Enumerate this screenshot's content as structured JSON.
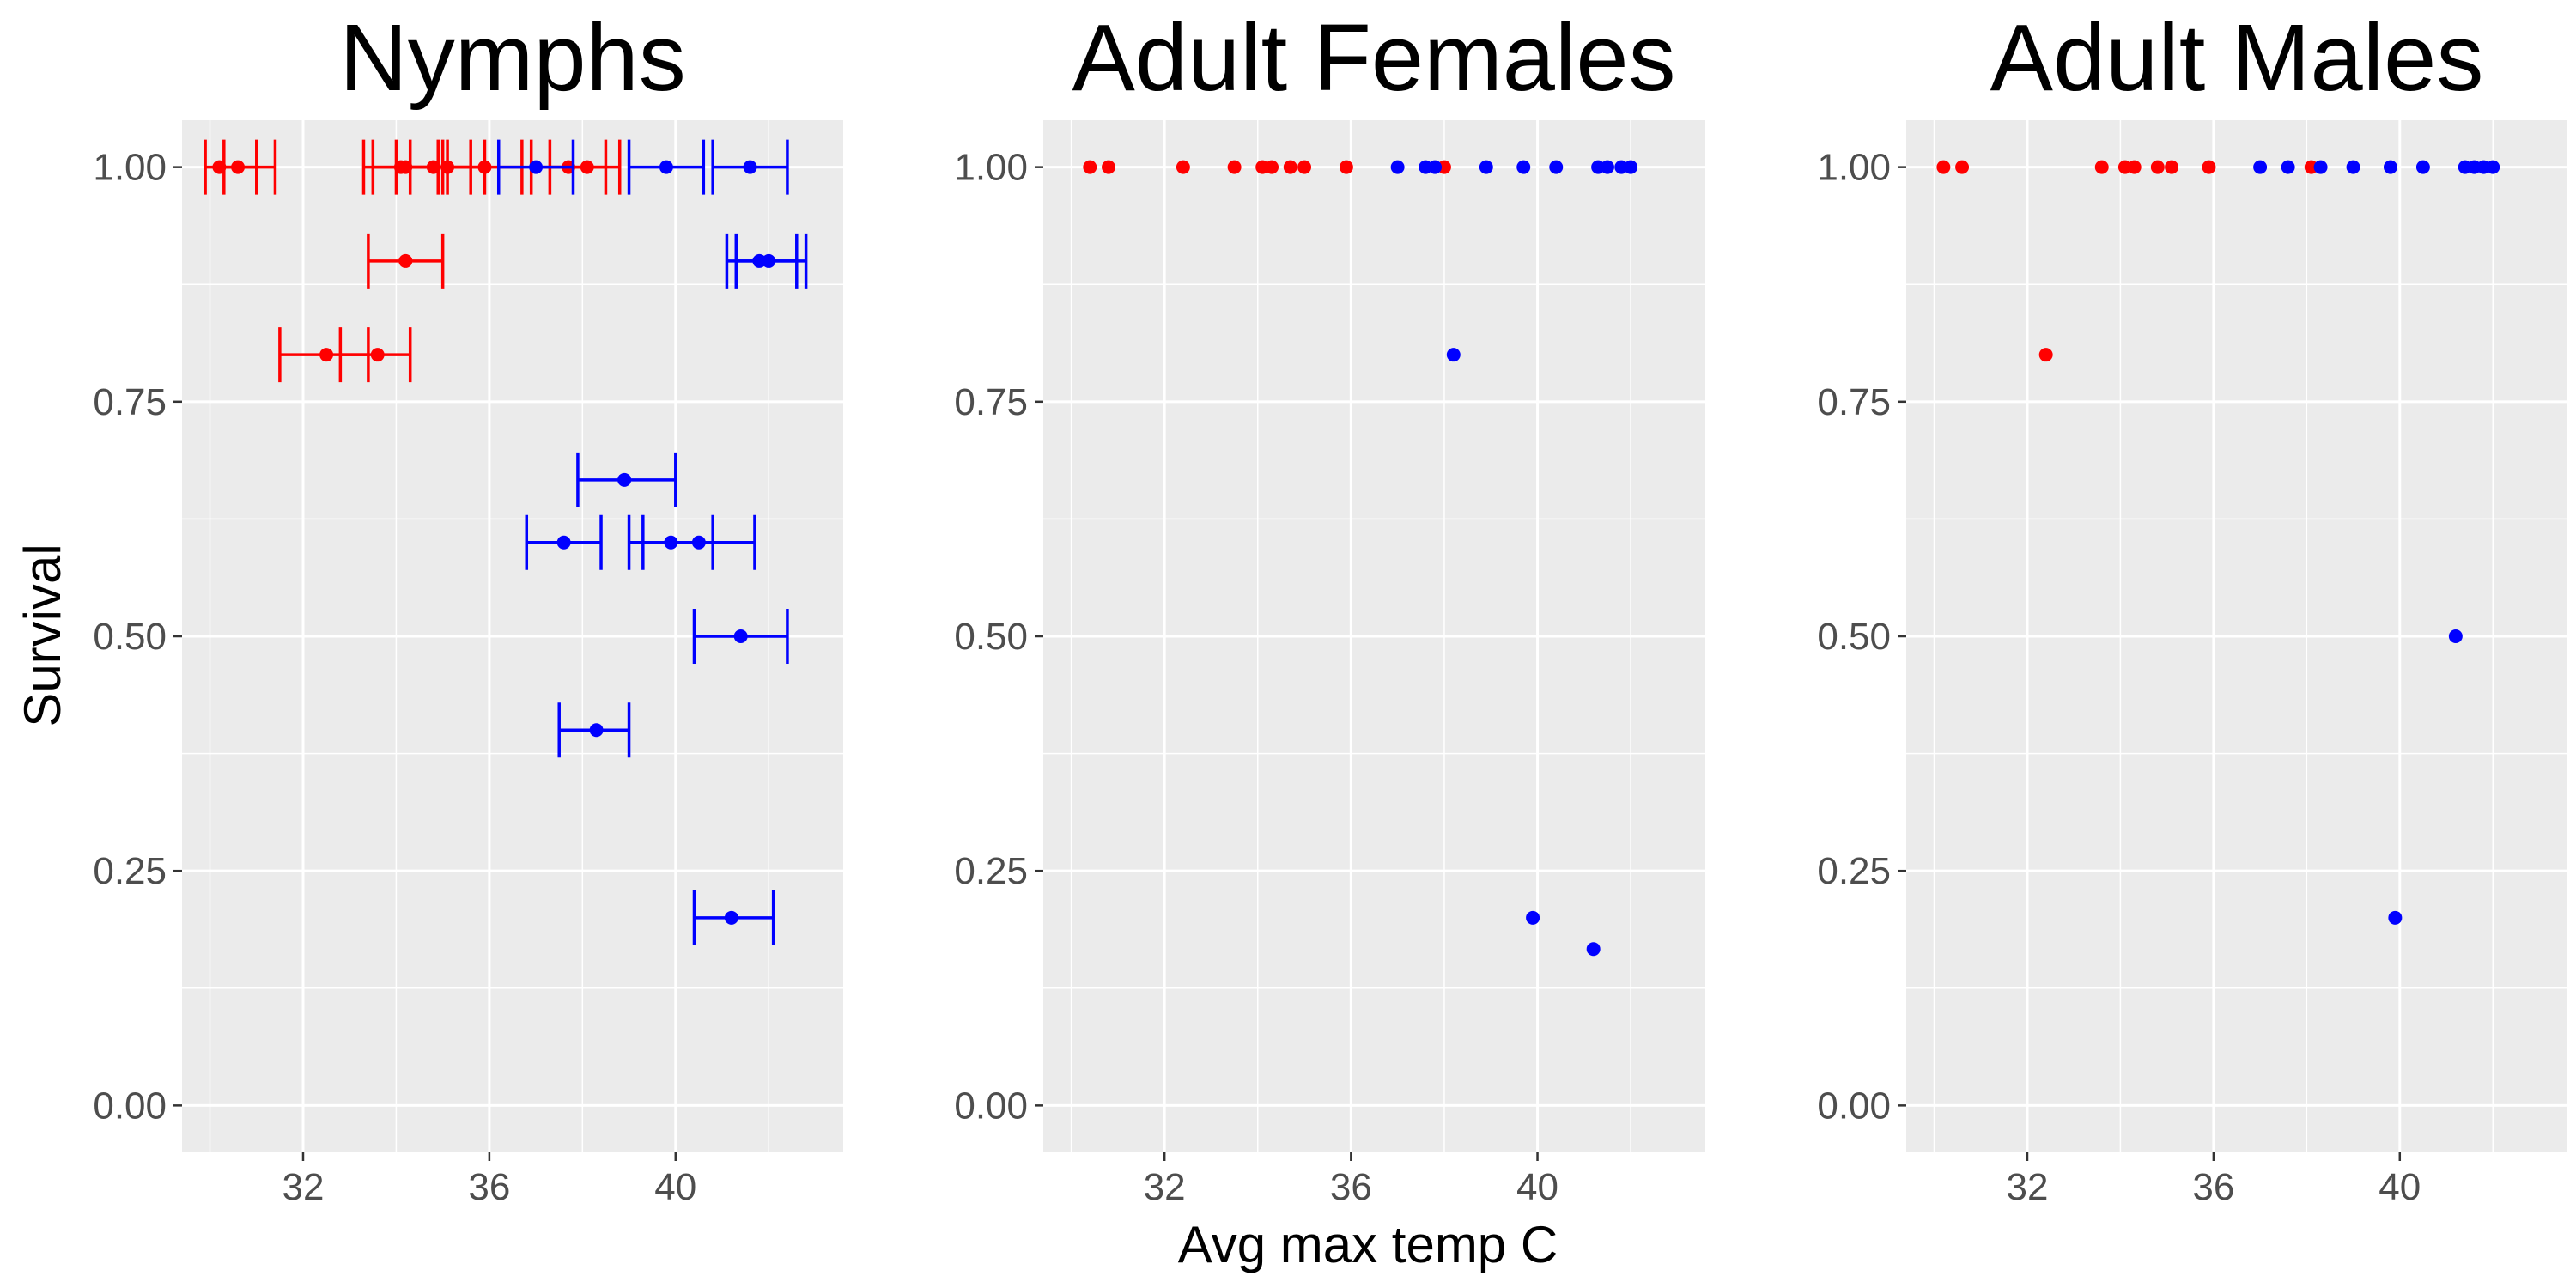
{
  "chart_data": [
    {
      "type": "scatter",
      "title": "Nymphs",
      "xlabel": "",
      "ylabel": "Survival",
      "xlim": [
        29.4,
        43.6
      ],
      "ylim": [
        -0.05,
        1.05
      ],
      "xticks": [
        "32",
        "36",
        "40"
      ],
      "yticks": [
        "0.00",
        "0.25",
        "0.50",
        "0.75",
        "1.00"
      ],
      "grid": true,
      "error_bars": "horizontal",
      "series": [
        {
          "color": "#ff0000",
          "points": [
            {
              "x": 30.2,
              "y": 1.0,
              "xmin": 29.9,
              "xmax": 31.0
            },
            {
              "x": 30.6,
              "y": 1.0,
              "xmin": 30.3,
              "xmax": 31.4
            },
            {
              "x": 34.1,
              "y": 1.0,
              "xmin": 33.3,
              "xmax": 34.9
            },
            {
              "x": 34.2,
              "y": 1.0,
              "xmin": 33.5,
              "xmax": 35.0
            },
            {
              "x": 34.8,
              "y": 1.0,
              "xmin": 34.0,
              "xmax": 35.6
            },
            {
              "x": 35.1,
              "y": 1.0,
              "xmin": 34.3,
              "xmax": 35.9
            },
            {
              "x": 35.9,
              "y": 1.0,
              "xmin": 35.1,
              "xmax": 36.7
            },
            {
              "x": 37.7,
              "y": 1.0,
              "xmin": 36.9,
              "xmax": 38.5
            },
            {
              "x": 38.1,
              "y": 1.0,
              "xmin": 37.3,
              "xmax": 38.8
            },
            {
              "x": 34.2,
              "y": 0.9,
              "xmin": 33.4,
              "xmax": 35.0
            },
            {
              "x": 32.5,
              "y": 0.8,
              "xmin": 31.5,
              "xmax": 33.4
            },
            {
              "x": 33.6,
              "y": 0.8,
              "xmin": 32.8,
              "xmax": 34.3
            }
          ]
        },
        {
          "color": "#0000ff",
          "points": [
            {
              "x": 37.0,
              "y": 1.0,
              "xmin": 36.2,
              "xmax": 37.8
            },
            {
              "x": 39.8,
              "y": 1.0,
              "xmin": 39.0,
              "xmax": 40.6
            },
            {
              "x": 41.6,
              "y": 1.0,
              "xmin": 40.8,
              "xmax": 42.4
            },
            {
              "x": 41.8,
              "y": 0.9,
              "xmin": 41.1,
              "xmax": 42.6
            },
            {
              "x": 42.0,
              "y": 0.9,
              "xmin": 41.3,
              "xmax": 42.8
            },
            {
              "x": 38.9,
              "y": 0.6667,
              "xmin": 37.9,
              "xmax": 40.0
            },
            {
              "x": 37.6,
              "y": 0.6,
              "xmin": 36.8,
              "xmax": 38.4
            },
            {
              "x": 39.9,
              "y": 0.6,
              "xmin": 39.0,
              "xmax": 40.8
            },
            {
              "x": 40.5,
              "y": 0.6,
              "xmin": 39.3,
              "xmax": 41.7
            },
            {
              "x": 41.4,
              "y": 0.5,
              "xmin": 40.4,
              "xmax": 42.4
            },
            {
              "x": 38.3,
              "y": 0.4,
              "xmin": 37.5,
              "xmax": 39.0
            },
            {
              "x": 41.2,
              "y": 0.2,
              "xmin": 40.4,
              "xmax": 42.1
            }
          ]
        }
      ]
    },
    {
      "type": "scatter",
      "title": "Adult Females",
      "xlabel": "Avg max temp C",
      "ylabel": "",
      "xlim": [
        29.4,
        43.6
      ],
      "ylim": [
        -0.05,
        1.05
      ],
      "xticks": [
        "32",
        "36",
        "40"
      ],
      "yticks": [
        "0.00",
        "0.25",
        "0.50",
        "0.75",
        "1.00"
      ],
      "grid": true,
      "series": [
        {
          "color": "#ff0000",
          "points": [
            {
              "x": 30.4,
              "y": 1.0
            },
            {
              "x": 30.8,
              "y": 1.0
            },
            {
              "x": 32.4,
              "y": 1.0
            },
            {
              "x": 33.5,
              "y": 1.0
            },
            {
              "x": 34.1,
              "y": 1.0
            },
            {
              "x": 34.3,
              "y": 1.0
            },
            {
              "x": 34.7,
              "y": 1.0
            },
            {
              "x": 35.0,
              "y": 1.0
            },
            {
              "x": 35.9,
              "y": 1.0
            },
            {
              "x": 38.0,
              "y": 1.0
            }
          ]
        },
        {
          "color": "#0000ff",
          "points": [
            {
              "x": 37.0,
              "y": 1.0
            },
            {
              "x": 37.6,
              "y": 1.0
            },
            {
              "x": 37.8,
              "y": 1.0
            },
            {
              "x": 38.9,
              "y": 1.0
            },
            {
              "x": 39.7,
              "y": 1.0
            },
            {
              "x": 40.4,
              "y": 1.0
            },
            {
              "x": 41.3,
              "y": 1.0
            },
            {
              "x": 41.5,
              "y": 1.0
            },
            {
              "x": 41.8,
              "y": 1.0
            },
            {
              "x": 42.0,
              "y": 1.0
            },
            {
              "x": 38.2,
              "y": 0.8
            },
            {
              "x": 39.9,
              "y": 0.2
            },
            {
              "x": 41.2,
              "y": 0.1667
            }
          ]
        }
      ]
    },
    {
      "type": "scatter",
      "title": "Adult Males",
      "xlabel": "",
      "ylabel": "",
      "xlim": [
        29.4,
        43.6
      ],
      "ylim": [
        -0.05,
        1.05
      ],
      "xticks": [
        "32",
        "36",
        "40"
      ],
      "yticks": [
        "0.00",
        "0.25",
        "0.50",
        "0.75",
        "1.00"
      ],
      "grid": true,
      "series": [
        {
          "color": "#ff0000",
          "points": [
            {
              "x": 30.2,
              "y": 1.0
            },
            {
              "x": 30.6,
              "y": 1.0
            },
            {
              "x": 33.6,
              "y": 1.0
            },
            {
              "x": 34.1,
              "y": 1.0
            },
            {
              "x": 34.3,
              "y": 1.0
            },
            {
              "x": 34.8,
              "y": 1.0
            },
            {
              "x": 35.1,
              "y": 1.0
            },
            {
              "x": 35.9,
              "y": 1.0
            },
            {
              "x": 38.1,
              "y": 1.0
            },
            {
              "x": 32.4,
              "y": 0.8
            }
          ]
        },
        {
          "color": "#0000ff",
          "points": [
            {
              "x": 37.0,
              "y": 1.0
            },
            {
              "x": 37.6,
              "y": 1.0
            },
            {
              "x": 38.3,
              "y": 1.0
            },
            {
              "x": 39.0,
              "y": 1.0
            },
            {
              "x": 39.8,
              "y": 1.0
            },
            {
              "x": 40.5,
              "y": 1.0
            },
            {
              "x": 41.4,
              "y": 1.0
            },
            {
              "x": 41.6,
              "y": 1.0
            },
            {
              "x": 41.8,
              "y": 1.0
            },
            {
              "x": 42.0,
              "y": 1.0
            },
            {
              "x": 41.2,
              "y": 0.5
            },
            {
              "x": 39.9,
              "y": 0.2
            }
          ]
        }
      ]
    }
  ]
}
